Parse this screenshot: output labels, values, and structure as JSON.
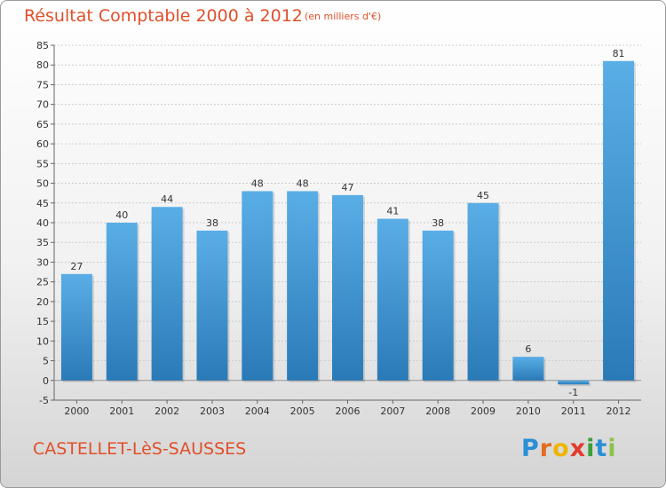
{
  "title": "Résultat Comptable 2000 à 2012",
  "subtitle": "(en milliers d'€)",
  "commune": "CASTELLET-LèS-SAUSSES",
  "brand": [
    "P",
    "r",
    "o",
    "x",
    "i",
    "t",
    "i"
  ],
  "colors": {
    "bar_light": "#5aaee6",
    "bar_dark": "#2a7ab8",
    "title": "#e0502a",
    "grid": "#cccccc"
  },
  "chart_data": {
    "type": "bar",
    "categories": [
      "2000",
      "2001",
      "2002",
      "2003",
      "2004",
      "2005",
      "2006",
      "2007",
      "2008",
      "2009",
      "2010",
      "2011",
      "2012"
    ],
    "values": [
      27,
      40,
      44,
      38,
      48,
      48,
      47,
      41,
      38,
      45,
      6,
      -1,
      81
    ],
    "ylim": [
      -5,
      85
    ],
    "yticks": [
      -5,
      0,
      5,
      10,
      15,
      20,
      25,
      30,
      35,
      40,
      45,
      50,
      55,
      60,
      65,
      70,
      75,
      80,
      85
    ],
    "grid": true
  }
}
